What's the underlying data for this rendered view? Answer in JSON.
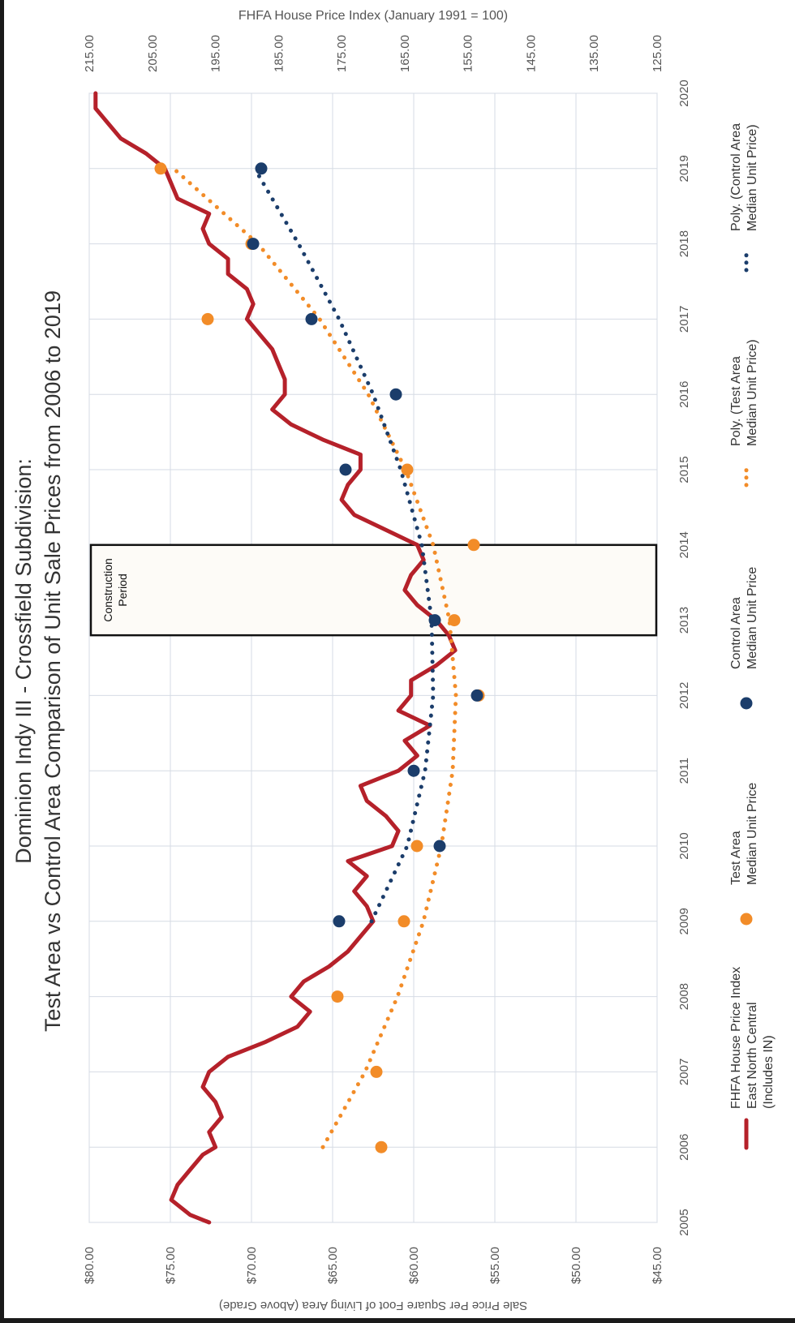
{
  "chart_data": {
    "type": "line",
    "title": "Dominion Indy III - Crossfield Subdivision:",
    "subtitle": "Test Area vs Control Area Comparison of Unit Sale Prices from 2006 to 2019",
    "xlabel": "",
    "ylabel": "Sale Price Per Square Foot of Living Area (Above Grade)",
    "y2label": "FHFA House Price Index (January 1991 = 100)",
    "orientation": "rotated-90-clockwise",
    "xlim": [
      2005,
      2020
    ],
    "x_ticks": [
      "2005",
      "2006",
      "2007",
      "2008",
      "2009",
      "2010",
      "2011",
      "2012",
      "2013",
      "2014",
      "2015",
      "2016",
      "2017",
      "2018",
      "2019",
      "2020"
    ],
    "ylim": [
      45,
      80
    ],
    "y_ticks": [
      "$45.00",
      "$50.00",
      "$55.00",
      "$60.00",
      "$65.00",
      "$70.00",
      "$75.00",
      "$80.00"
    ],
    "y2lim": [
      125,
      215
    ],
    "y2_ticks": [
      "125.00",
      "135.00",
      "145.00",
      "155.00",
      "165.00",
      "175.00",
      "185.00",
      "195.00",
      "205.00",
      "215.00"
    ],
    "grid": true,
    "legend_position": "bottom",
    "annotation": {
      "line1": "Construction",
      "line2": "Period",
      "x_from": 2012.8,
      "x_to": 2014.0
    },
    "colors": {
      "fhfa": "#b5212a",
      "test": "#f28c28",
      "control": "#1b3d6b",
      "grid": "#d6dbe4",
      "text": "#333333",
      "axis_text": "#555555"
    },
    "series": [
      {
        "name": "FHFA House Price Index East North Central (Includes IN)",
        "kind": "line",
        "axis": "y2",
        "x": [
          2005.0,
          2005.1,
          2005.3,
          2005.5,
          2005.7,
          2005.9,
          2006.0,
          2006.2,
          2006.4,
          2006.6,
          2006.8,
          2007.0,
          2007.2,
          2007.4,
          2007.6,
          2007.8,
          2008.0,
          2008.2,
          2008.4,
          2008.6,
          2008.8,
          2009.0,
          2009.2,
          2009.4,
          2009.6,
          2009.8,
          2010.0,
          2010.2,
          2010.4,
          2010.6,
          2010.8,
          2011.0,
          2011.2,
          2011.4,
          2011.6,
          2011.8,
          2012.0,
          2012.2,
          2012.4,
          2012.6,
          2012.8,
          2013.0,
          2013.2,
          2013.4,
          2013.6,
          2013.8,
          2014.0,
          2014.2,
          2014.4,
          2014.6,
          2014.8,
          2015.0,
          2015.2,
          2015.4,
          2015.6,
          2015.8,
          2016.0,
          2016.2,
          2016.4,
          2016.6,
          2016.8,
          2017.0,
          2017.2,
          2017.4,
          2017.6,
          2017.8,
          2018.0,
          2018.2,
          2018.4,
          2018.6,
          2018.8,
          2019.0,
          2019.2,
          2019.4,
          2019.6,
          2019.8,
          2020.0
        ],
        "values": [
          196,
          199,
          202,
          201,
          199,
          197,
          195,
          196,
          194,
          195,
          197,
          196,
          193,
          187,
          182,
          180,
          183,
          181,
          177,
          174,
          172,
          170,
          171,
          173,
          171,
          174,
          167,
          166,
          168,
          171,
          172,
          166,
          163,
          165,
          161,
          166,
          164,
          164,
          160,
          157,
          158,
          160,
          163,
          165,
          164,
          162,
          163,
          168,
          173,
          175,
          174,
          172,
          172,
          178,
          183,
          186,
          184,
          184,
          185,
          186,
          188,
          190,
          189,
          190,
          193,
          193,
          196,
          197,
          196,
          201,
          202,
          203,
          206,
          210,
          212,
          214,
          214
        ]
      },
      {
        "name": "Test Area Median Unit Price",
        "kind": "scatter",
        "axis": "y",
        "x": [
          2006,
          2007,
          2008,
          2009,
          2010,
          2012,
          2013,
          2014,
          2015,
          2017,
          2018,
          2019
        ],
        "values": [
          62.0,
          62.3,
          64.7,
          60.6,
          59.8,
          56.0,
          57.5,
          56.3,
          60.4,
          72.7,
          70.0,
          75.6
        ]
      },
      {
        "name": "Control Area Median Unit Price",
        "kind": "scatter",
        "axis": "y",
        "x": [
          2009,
          2010,
          2011,
          2012,
          2013,
          2015,
          2016,
          2017,
          2018,
          2019
        ],
        "values": [
          64.6,
          58.4,
          60.0,
          56.1,
          58.7,
          64.2,
          61.1,
          66.3,
          69.9,
          69.4
        ]
      },
      {
        "name": "Poly. (Test Area Median Unit Price)",
        "kind": "trend",
        "axis": "y",
        "x": [
          2006,
          2007,
          2008,
          2009,
          2010,
          2011,
          2012,
          2013,
          2014,
          2015,
          2016,
          2017,
          2018,
          2019
        ],
        "values": [
          65.6,
          63.0,
          61.0,
          59.4,
          58.3,
          57.6,
          57.4,
          57.8,
          58.8,
          60.5,
          62.8,
          65.8,
          69.6,
          74.8
        ]
      },
      {
        "name": "Poly. (Control Area Median Unit Price)",
        "kind": "trend",
        "axis": "y",
        "x": [
          2009,
          2010,
          2011,
          2012,
          2013,
          2014,
          2015,
          2016,
          2017,
          2018,
          2019
        ],
        "values": [
          62.6,
          60.4,
          59.3,
          58.8,
          58.9,
          59.5,
          60.8,
          62.5,
          64.6,
          67.1,
          69.8
        ]
      }
    ],
    "legend": [
      {
        "line1": "FHFA House Price Index",
        "line2": "East North Central",
        "line3": "(Includes IN)"
      },
      {
        "line1": "Test Area",
        "line2": "Median Unit Price"
      },
      {
        "line1": "Control Area",
        "line2": "Median Unit Price"
      },
      {
        "line1": "Poly. (Test Area",
        "line2": "Median Unit Price)"
      },
      {
        "line1": "Poly. (Control Area",
        "line2": "Median Unit Price)"
      }
    ]
  }
}
